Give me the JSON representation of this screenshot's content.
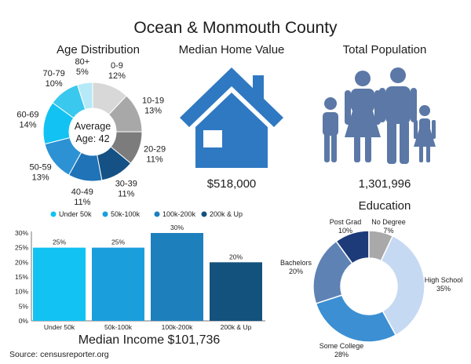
{
  "title": "Ocean & Monmouth County",
  "source": "Source: censusreporter.org",
  "colors": {
    "cyan": "#12c2f2",
    "light_blue": "#1b9fdc",
    "mid_blue": "#1e7fbd",
    "navy": "#14527e",
    "house": "#2f79c2",
    "family": "#5b78a6"
  },
  "icons": {
    "house": "house-icon",
    "family": "family-icon"
  },
  "home_value": {
    "title": "Median Home Value",
    "value": "$518,000"
  },
  "population": {
    "title": "Total Population",
    "value": "1,301,996"
  },
  "chart_data": [
    {
      "type": "pie",
      "title": "Age Distribution",
      "center_text": [
        "Average",
        "Age: 42"
      ],
      "categories": [
        "0-9",
        "10-19",
        "20-29",
        "30-39",
        "40-49",
        "50-59",
        "60-69",
        "70-79",
        "80+"
      ],
      "labels": [
        "12%",
        "13%",
        "11%",
        "11%",
        "11%",
        "13%",
        "14%",
        "10%",
        "5%"
      ],
      "values": [
        12,
        13,
        11,
        11,
        11,
        13,
        14,
        10,
        5
      ],
      "colors": [
        "#d8d8d8",
        "#a8a8a8",
        "#7c7c7c",
        "#155184",
        "#1f73b6",
        "#2c92d4",
        "#12c2f2",
        "#3bc8ee",
        "#b6e9f8"
      ]
    },
    {
      "type": "bar",
      "title": "Median Income $101,736",
      "categories": [
        "Under 50k",
        "50k-100k",
        "100k-200k",
        "200k & Up"
      ],
      "values": [
        25,
        25,
        30,
        20
      ],
      "labels": [
        "25%",
        "25%",
        "30%",
        "20%"
      ],
      "legend": [
        "Under 50k",
        "50k-100k",
        "100k-200k",
        "200k & Up"
      ],
      "colors": [
        "#12c2f2",
        "#1b9fdc",
        "#1e7fbd",
        "#14527e"
      ],
      "yticks": [
        "0%",
        "5%",
        "10%",
        "15%",
        "20%",
        "25%",
        "30%"
      ],
      "ylim": [
        0,
        30
      ],
      "grid": false,
      "legend_position": "top"
    },
    {
      "type": "pie",
      "title": "Education",
      "categories": [
        "High School",
        "Some College",
        "Bachelors",
        "Post Grad",
        "No Degree"
      ],
      "labels": [
        "35%",
        "28%",
        "20%",
        "10%",
        "7%"
      ],
      "values": [
        35,
        28,
        20,
        10,
        7
      ],
      "colors": [
        "#c6d9f3",
        "#3c8fd2",
        "#5f82b4",
        "#1d3b78",
        "#a9a9a9"
      ]
    }
  ]
}
